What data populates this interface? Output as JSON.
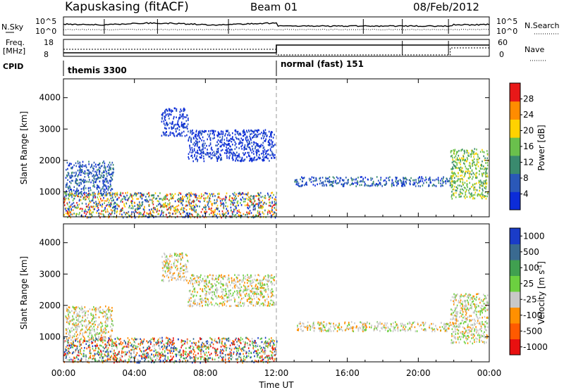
{
  "header": {
    "site": "Kapuskasing (fitACF)",
    "beam": "Beam 01",
    "date": "08/Feb/2012"
  },
  "summary_panels": {
    "nsky_label": "N.Sky",
    "freq_label_1": "Freq.",
    "freq_label_2": "[MHz]",
    "cpid_label": "CPID",
    "nsearch_label": "N.Search",
    "nave_label": "Nave",
    "nsky_ticks": [
      "10^5",
      "10^0"
    ],
    "nsearch_ticks": [
      "10^5",
      "10^0"
    ],
    "freq_ticks": [
      "18",
      "8"
    ],
    "nave_ticks": [
      "60",
      "0"
    ],
    "cpid_segments": [
      {
        "label": "themis 3300",
        "start_hour": 0,
        "end_hour": 12
      },
      {
        "label": "normal (fast) 151",
        "start_hour": 12,
        "end_hour": 24
      }
    ]
  },
  "x_axis": {
    "label": "Time UT",
    "ticks": [
      "00:00",
      "04:00",
      "08:00",
      "12:00",
      "16:00",
      "20:00",
      "00:00"
    ]
  },
  "chart_data": [
    {
      "type": "heatmap",
      "panel": "power",
      "ylabel": "Slant Range [km]",
      "yticks": [
        1000,
        2000,
        3000,
        4000
      ],
      "ylim": [
        200,
        4600
      ],
      "xlim_hours": [
        0,
        24
      ],
      "colorbar_label": "Power [dB]",
      "colorbar_ticks": [
        4,
        8,
        12,
        16,
        20,
        24,
        28
      ],
      "colorbar_colors": [
        "#0c2cd8",
        "#2a58b8",
        "#3a8a6e",
        "#6ac04c",
        "#ffd200",
        "#ff8c00",
        "#e81818"
      ],
      "echo_regions": [
        {
          "t0": 0.1,
          "t1": 2.8,
          "r0": 900,
          "r1": 2000,
          "level": 1
        },
        {
          "t0": 5.5,
          "t1": 7.0,
          "r0": 2800,
          "r1": 3700,
          "level": 0
        },
        {
          "t0": 7.0,
          "t1": 11.9,
          "r0": 2000,
          "r1": 3000,
          "level": 0
        },
        {
          "t0": 13.0,
          "t1": 21.8,
          "r0": 1200,
          "r1": 1500,
          "level": 1
        },
        {
          "t0": 21.8,
          "t1": 23.9,
          "r0": 800,
          "r1": 2400,
          "level": 3
        },
        {
          "t0": 0.0,
          "t1": 12.0,
          "r0": 200,
          "r1": 1000,
          "level": 4
        }
      ]
    },
    {
      "type": "heatmap",
      "panel": "velocity",
      "ylabel": "Slant Range [km]",
      "yticks": [
        1000,
        2000,
        3000,
        4000
      ],
      "ylim": [
        200,
        4600
      ],
      "xlim_hours": [
        0,
        24
      ],
      "colorbar_label": "Velocity [m s^-1]",
      "colorbar_ticks": [
        1000,
        500,
        100,
        25,
        -25,
        -100,
        -500,
        -1000
      ],
      "colorbar_colors": [
        "#1a3cc8",
        "#3a6a90",
        "#40a050",
        "#6cd040",
        "#c8c8c8",
        "#ff9000",
        "#ff5a00",
        "#e81010"
      ],
      "echo_regions": [
        {
          "t0": 0.1,
          "t1": 2.8,
          "r0": 900,
          "r1": 2000,
          "level": 4
        },
        {
          "t0": 5.5,
          "t1": 7.0,
          "r0": 2800,
          "r1": 3700,
          "level": 4
        },
        {
          "t0": 7.0,
          "t1": 11.9,
          "r0": 2000,
          "r1": 3000,
          "level": 4
        },
        {
          "t0": 13.0,
          "t1": 21.8,
          "r0": 1200,
          "r1": 1500,
          "level": 4
        },
        {
          "t0": 21.8,
          "t1": 23.9,
          "r0": 800,
          "r1": 2400,
          "level": 4
        },
        {
          "t0": 0.0,
          "t1": 12.0,
          "r0": 200,
          "r1": 1000,
          "level": 3
        }
      ]
    }
  ]
}
